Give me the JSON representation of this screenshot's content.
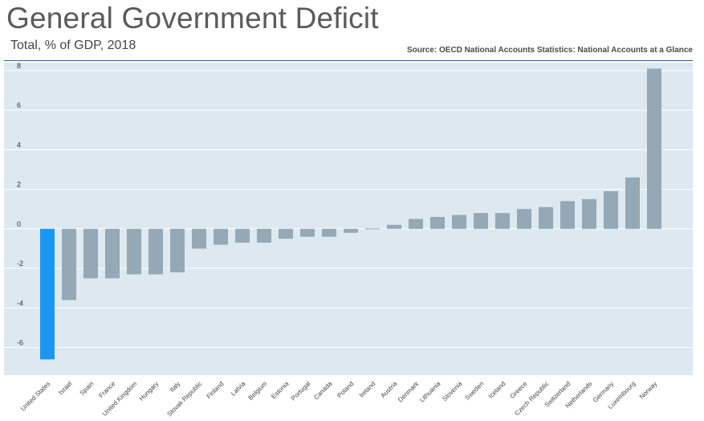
{
  "title": "General Government Deficit",
  "subtitle": "Total, % of GDP, 2018",
  "source": "Source: OECD National Accounts Statistics: National Accounts at a Glance",
  "chart_data": {
    "type": "bar",
    "title": "General Government Deficit",
    "subtitle": "Total, % of GDP, 2018",
    "xlabel": "",
    "ylabel": "",
    "ylim": [
      -7.4,
      8.4
    ],
    "yticks": [
      -6,
      -4,
      -2,
      0,
      2,
      4,
      6,
      8
    ],
    "grid": true,
    "legend": "none",
    "colors": {
      "default": "#94a8b5",
      "highlight": "#1a97f0",
      "plot_bg": "#dde8f0"
    },
    "highlight_category": "United States",
    "categories": [
      "United States",
      "Israel",
      "Spain",
      "France",
      "United Kingdom",
      "Hungary",
      "Italy",
      "Slovak Republic",
      "Finland",
      "Latvia",
      "Belgium",
      "Estonia",
      "Portugal",
      "Canada",
      "Poland",
      "Ireland",
      "Austria",
      "Denmark",
      "Lithuania",
      "Slovenia",
      "Sweden",
      "Iceland",
      "Greece",
      "Czech Republic",
      "Switzerland",
      "Netherlands",
      "Germany",
      "Luxembourg",
      "Norway"
    ],
    "values": [
      -6.6,
      -3.6,
      -2.5,
      -2.5,
      -2.3,
      -2.3,
      -2.2,
      -1.0,
      -0.8,
      -0.7,
      -0.7,
      -0.5,
      -0.4,
      -0.4,
      -0.2,
      0.0,
      0.2,
      0.5,
      0.6,
      0.7,
      0.8,
      0.8,
      1.0,
      1.1,
      1.4,
      1.5,
      1.9,
      2.6,
      8.1
    ]
  }
}
